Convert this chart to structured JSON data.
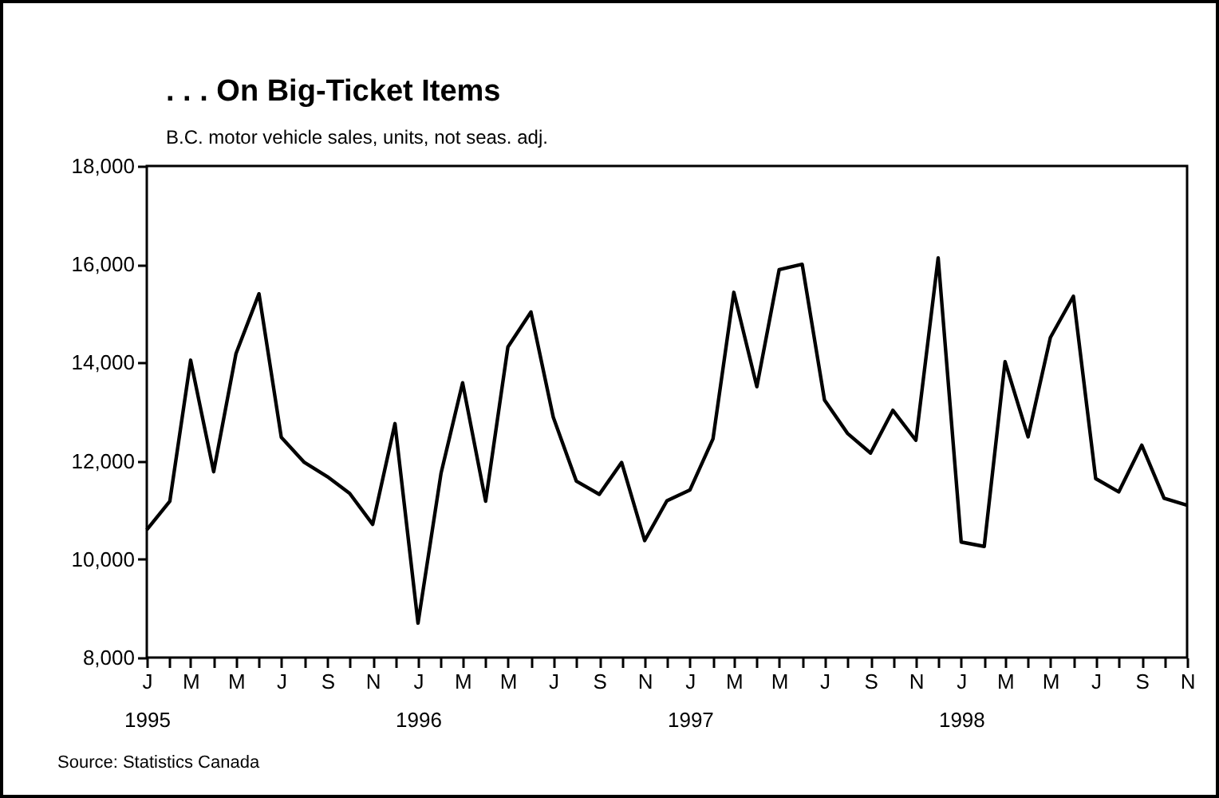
{
  "chart_data": {
    "type": "line",
    "title": ". . . On Big-Ticket Items",
    "subtitle": "B.C. motor vehicle sales, units, not seas. adj.",
    "annotations": [
      "Source: Statistics Canada"
    ],
    "x": [
      "1995-01",
      "1995-02",
      "1995-03",
      "1995-04",
      "1995-05",
      "1995-06",
      "1995-07",
      "1995-08",
      "1995-09",
      "1995-10",
      "1995-11",
      "1995-12",
      "1996-01",
      "1996-02",
      "1996-03",
      "1996-04",
      "1996-05",
      "1996-06",
      "1996-07",
      "1996-08",
      "1996-09",
      "1996-10",
      "1996-11",
      "1996-12",
      "1997-01",
      "1997-02",
      "1997-03",
      "1997-04",
      "1997-05",
      "1997-06",
      "1997-07",
      "1997-08",
      "1997-09",
      "1997-10",
      "1997-11",
      "1997-12",
      "1998-01",
      "1998-02",
      "1998-03",
      "1998-04",
      "1998-05",
      "1998-06",
      "1998-07",
      "1998-08",
      "1998-09",
      "1998-10",
      "1998-11"
    ],
    "series": [
      {
        "color": "#000000",
        "values": [
          10600,
          11180,
          14050,
          11780,
          14180,
          15400,
          12480,
          11970,
          11680,
          11340,
          10710,
          12760,
          8700,
          11750,
          13590,
          11180,
          14320,
          15030,
          12890,
          11590,
          11320,
          11970,
          10380,
          11190,
          11410,
          12450,
          15430,
          13510,
          15890,
          16000,
          13240,
          12560,
          12160,
          13030,
          12420,
          16130,
          10350,
          10260,
          14020,
          12490,
          14510,
          15350,
          11640,
          11370,
          12320,
          11240,
          11100
        ]
      }
    ],
    "xlim": [
      "1995-01",
      "1998-11"
    ],
    "xticks": [
      {
        "value": "1995-01",
        "label": "J\n1995"
      },
      {
        "value": "1995-02",
        "label": null
      },
      {
        "value": "1995-03",
        "label": "M"
      },
      {
        "value": "1995-04",
        "label": null
      },
      {
        "value": "1995-05",
        "label": "M"
      },
      {
        "value": "1995-06",
        "label": null
      },
      {
        "value": "1995-07",
        "label": "J"
      },
      {
        "value": "1995-08",
        "label": null
      },
      {
        "value": "1995-09",
        "label": "S"
      },
      {
        "value": "1995-10",
        "label": null
      },
      {
        "value": "1995-11",
        "label": "N"
      },
      {
        "value": "1995-12",
        "label": null
      },
      {
        "value": "1996-01",
        "label": "J\n1996"
      },
      {
        "value": "1996-02",
        "label": null
      },
      {
        "value": "1996-03",
        "label": "M"
      },
      {
        "value": "1996-04",
        "label": null
      },
      {
        "value": "1996-05",
        "label": "M"
      },
      {
        "value": "1996-06",
        "label": null
      },
      {
        "value": "1996-07",
        "label": "J"
      },
      {
        "value": "1996-08",
        "label": null
      },
      {
        "value": "1996-09",
        "label": "S"
      },
      {
        "value": "1996-10",
        "label": null
      },
      {
        "value": "1996-11",
        "label": "N"
      },
      {
        "value": "1996-12",
        "label": null
      },
      {
        "value": "1997-01",
        "label": "J\n1997"
      },
      {
        "value": "1997-02",
        "label": null
      },
      {
        "value": "1997-03",
        "label": "M"
      },
      {
        "value": "1997-04",
        "label": null
      },
      {
        "value": "1997-05",
        "label": "M"
      },
      {
        "value": "1997-06",
        "label": null
      },
      {
        "value": "1997-07",
        "label": "J"
      },
      {
        "value": "1997-08",
        "label": null
      },
      {
        "value": "1997-09",
        "label": "S"
      },
      {
        "value": "1997-10",
        "label": null
      },
      {
        "value": "1997-11",
        "label": "N"
      },
      {
        "value": "1997-12",
        "label": null
      },
      {
        "value": "1998-01",
        "label": "J\n1998"
      },
      {
        "value": "1998-02",
        "label": null
      },
      {
        "value": "1998-03",
        "label": "M"
      },
      {
        "value": "1998-04",
        "label": null
      },
      {
        "value": "1998-05",
        "label": "M"
      },
      {
        "value": "1998-06",
        "label": null
      },
      {
        "value": "1998-07",
        "label": "J"
      },
      {
        "value": "1998-08",
        "label": null
      },
      {
        "value": "1998-09",
        "label": "S"
      },
      {
        "value": "1998-10",
        "label": null
      },
      {
        "value": "1998-11",
        "label": "N"
      }
    ],
    "ylim": [
      8000,
      18000
    ],
    "yticks": [
      {
        "value": 8000,
        "label": "8,000"
      },
      {
        "value": 10000,
        "label": "10,000"
      },
      {
        "value": 12000,
        "label": "12,000"
      },
      {
        "value": 14000,
        "label": "14,000"
      },
      {
        "value": 16000,
        "label": "16,000"
      },
      {
        "value": 18000,
        "label": "18,000"
      }
    ],
    "grid": false,
    "line_style": "solid"
  }
}
